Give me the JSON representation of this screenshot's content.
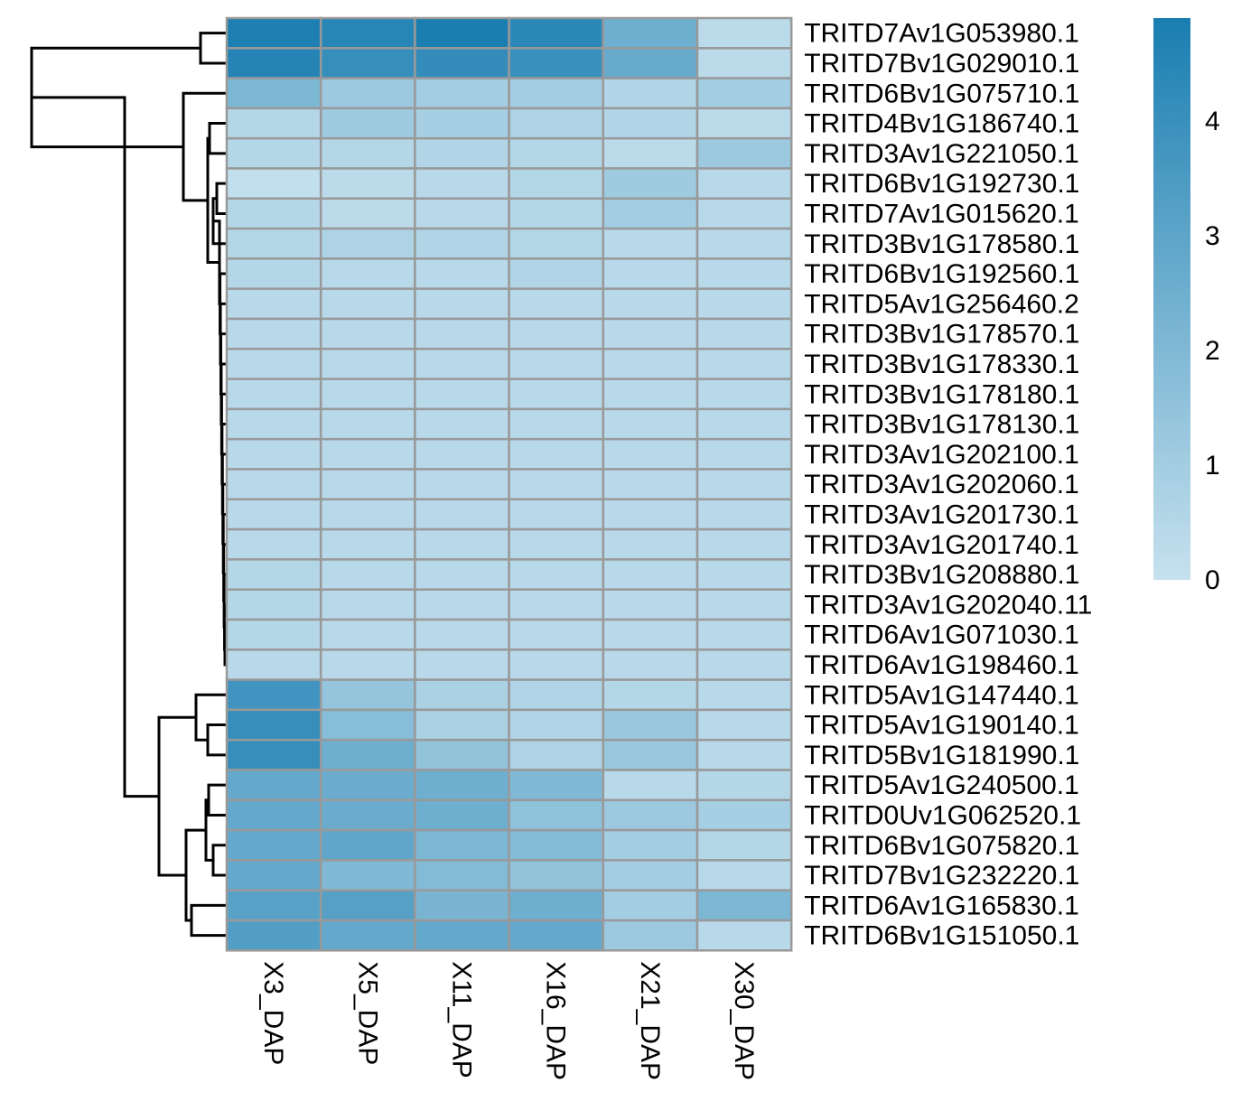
{
  "chart_data": {
    "type": "heatmap",
    "title": "",
    "columns": [
      "X3_DAP",
      "X5_DAP",
      "X11_DAP",
      "X16_DAP",
      "X21_DAP",
      "X30_DAP"
    ],
    "rows": [
      "TRITD7Av1G053980.1",
      "TRITD7Bv1G029010.1",
      "TRITD6Bv1G075710.1",
      "TRITD4Bv1G186740.1",
      "TRITD3Av1G221050.1",
      "TRITD6Bv1G192730.1",
      "TRITD7Av1G015620.1",
      "TRITD3Bv1G178580.1",
      "TRITD6Bv1G192560.1",
      "TRITD5Av1G256460.2",
      "TRITD3Bv1G178570.1",
      "TRITD3Bv1G178330.1",
      "TRITD3Bv1G178180.1",
      "TRITD3Bv1G178130.1",
      "TRITD3Av1G202100.1",
      "TRITD3Av1G202060.1",
      "TRITD3Av1G201730.1",
      "TRITD3Av1G201740.1",
      "TRITD3Bv1G208880.1",
      "TRITD3Av1G202040.11",
      "TRITD6Av1G071030.1",
      "TRITD6Av1G198460.1",
      "TRITD5Av1G147440.1",
      "TRITD5Av1G190140.1",
      "TRITD5Bv1G181990.1",
      "TRITD5Av1G240500.1",
      "TRITD0Uv1G062520.1",
      "TRITD6Bv1G075820.1",
      "TRITD7Bv1G232220.1",
      "TRITD6Av1G165830.1",
      "TRITD6Bv1G151050.1"
    ],
    "values": [
      [
        4.8,
        4.5,
        4.9,
        4.4,
        2.5,
        0.3
      ],
      [
        4.6,
        4.1,
        4.2,
        4.0,
        2.7,
        0.3
      ],
      [
        2.1,
        1.2,
        1.0,
        1.0,
        0.6,
        1.0
      ],
      [
        0.5,
        1.1,
        0.9,
        0.7,
        0.6,
        0.3
      ],
      [
        0.5,
        0.5,
        0.6,
        0.5,
        0.3,
        1.2
      ],
      [
        0.1,
        0.3,
        0.4,
        0.5,
        1.1,
        0.4
      ],
      [
        0.5,
        0.3,
        0.4,
        0.5,
        1.0,
        0.4
      ],
      [
        0.5,
        0.7,
        0.6,
        0.5,
        0.4,
        0.4
      ],
      [
        0.5,
        0.4,
        0.4,
        0.6,
        0.4,
        0.4
      ],
      [
        0.4,
        0.4,
        0.4,
        0.4,
        0.4,
        0.4
      ],
      [
        0.4,
        0.4,
        0.4,
        0.4,
        0.4,
        0.4
      ],
      [
        0.4,
        0.4,
        0.4,
        0.4,
        0.4,
        0.4
      ],
      [
        0.4,
        0.4,
        0.4,
        0.4,
        0.4,
        0.4
      ],
      [
        0.4,
        0.4,
        0.4,
        0.4,
        0.4,
        0.4
      ],
      [
        0.4,
        0.4,
        0.4,
        0.4,
        0.4,
        0.4
      ],
      [
        0.4,
        0.4,
        0.4,
        0.4,
        0.4,
        0.4
      ],
      [
        0.4,
        0.4,
        0.4,
        0.4,
        0.4,
        0.4
      ],
      [
        0.4,
        0.4,
        0.4,
        0.4,
        0.4,
        0.4
      ],
      [
        0.5,
        0.4,
        0.4,
        0.4,
        0.4,
        0.4
      ],
      [
        0.5,
        0.4,
        0.4,
        0.4,
        0.4,
        0.4
      ],
      [
        0.5,
        0.4,
        0.4,
        0.4,
        0.4,
        0.4
      ],
      [
        0.4,
        0.4,
        0.4,
        0.4,
        0.4,
        0.4
      ],
      [
        3.8,
        1.4,
        0.8,
        0.6,
        0.5,
        0.4
      ],
      [
        4.1,
        1.8,
        0.8,
        0.6,
        1.3,
        0.4
      ],
      [
        4.1,
        2.5,
        1.5,
        0.7,
        1.3,
        0.4
      ],
      [
        2.8,
        2.6,
        2.5,
        2.0,
        0.4,
        0.5
      ],
      [
        2.8,
        2.6,
        2.5,
        1.6,
        1.2,
        0.9
      ],
      [
        2.8,
        2.9,
        2.1,
        1.9,
        1.0,
        0.5
      ],
      [
        2.8,
        2.0,
        1.9,
        1.5,
        1.0,
        0.4
      ],
      [
        3.1,
        3.2,
        2.2,
        2.5,
        1.0,
        2.1
      ],
      [
        3.3,
        2.8,
        2.8,
        2.8,
        1.2,
        0.4
      ]
    ],
    "color_scale": {
      "min": 0,
      "max": 4.9,
      "low_color": "#c6e1ee",
      "high_color": "#1a7eb1",
      "ticks": [
        0,
        1,
        2,
        3,
        4
      ]
    },
    "grid_color": "#999999",
    "row_dendrogram": true,
    "legend_position": "right"
  }
}
